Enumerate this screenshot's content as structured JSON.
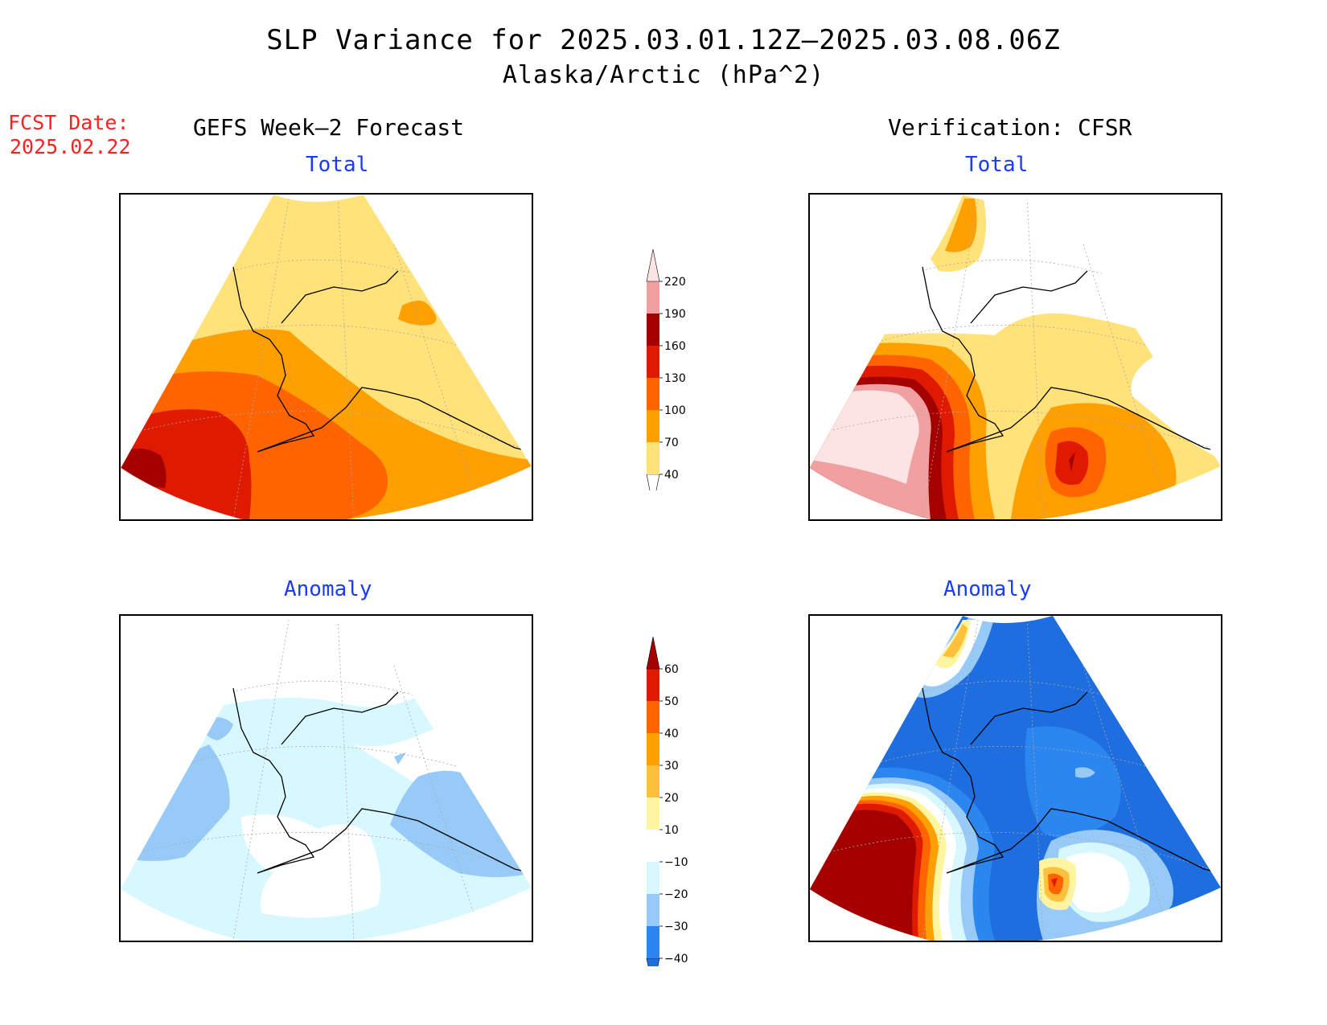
{
  "title": "SLP Variance for 2025.03.01.12Z–2025.03.08.06Z",
  "subtitle": "Alaska/Arctic (hPa^2)",
  "fcst": {
    "label": "FCST Date:",
    "date": "2025.02.22"
  },
  "headers": {
    "left": "GEFS Week–2 Forecast",
    "right": "Verification: CFSR"
  },
  "panels": {
    "forecast_total": {
      "title": "Total"
    },
    "verification_total": {
      "title": "Total"
    },
    "forecast_anomaly": {
      "title": "Anomaly"
    },
    "verification_anomaly": {
      "title": "Anomaly"
    }
  },
  "colorbars": {
    "total": {
      "labels": [
        "220",
        "190",
        "160",
        "130",
        "100",
        "70",
        "40"
      ],
      "levels": [
        40,
        70,
        100,
        130,
        160,
        190,
        220
      ],
      "colors": [
        "#ffffff",
        "#ffe27a",
        "#ffa000",
        "#ff6400",
        "#e01a00",
        "#a50000",
        "#f0a0a0",
        "#fde4e4"
      ]
    },
    "anomaly": {
      "labels": [
        "60",
        "50",
        "40",
        "30",
        "20",
        "10",
        "−10",
        "−20",
        "−30",
        "−40"
      ],
      "levels": [
        -40,
        -30,
        -20,
        -10,
        10,
        20,
        30,
        40,
        50,
        60
      ],
      "colors": [
        "#1e6ee0",
        "#2c86f0",
        "#98caf8",
        "#d8f8ff",
        "#ffffff",
        "#fff5a0",
        "#ffc03c",
        "#ffa000",
        "#ff6400",
        "#e01a00",
        "#a50000"
      ]
    }
  },
  "colors": {
    "title_red": "#ff2020",
    "panel_title_blue": "#1a3bff"
  }
}
